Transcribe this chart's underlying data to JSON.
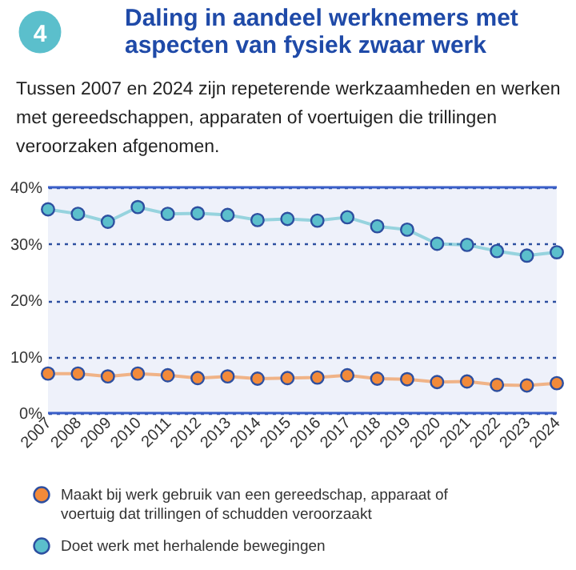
{
  "chart_data": {
    "type": "line",
    "title": "Daling in aandeel werknemers met aspecten van fysiek zwaar werk",
    "subtitle": "Tussen 2007 en 2024 zijn repeterende werkzaamheden en werken met gereedschappen, apparaten of voertuigen die trillingen veroorzaken afgenomen.",
    "annotations": [
      "4"
    ],
    "categories": [
      "2007",
      "2008",
      "2009",
      "2010",
      "2011",
      "2012",
      "2013",
      "2014",
      "2015",
      "2016",
      "2017",
      "2018",
      "2019",
      "2020",
      "2021",
      "2022",
      "2023",
      "2024"
    ],
    "series": [
      {
        "name": "Maakt bij werk gebruik van een gereedschap, apparaat of voertuig dat trillingen of schudden veroorzaakt",
        "color": "#f28a3a",
        "values": [
          7.0,
          7.0,
          6.5,
          7.0,
          6.7,
          6.2,
          6.5,
          6.1,
          6.2,
          6.3,
          6.7,
          6.1,
          6.0,
          5.5,
          5.6,
          5.0,
          4.9,
          5.3
        ]
      },
      {
        "name": "Doet werk met herhalende bewegingen",
        "color": "#5bbfcc",
        "values": [
          36.1,
          35.3,
          33.9,
          36.5,
          35.3,
          35.4,
          35.1,
          34.2,
          34.4,
          34.1,
          34.7,
          33.1,
          32.5,
          30.0,
          29.8,
          28.7,
          27.9,
          28.5
        ]
      }
    ],
    "ylim": [
      0,
      40
    ],
    "yticks": [
      {
        "value": 0,
        "label": "0%"
      },
      {
        "value": 10,
        "label": "10%"
      },
      {
        "value": 20,
        "label": "20%"
      },
      {
        "value": 30,
        "label": "30%"
      },
      {
        "value": 40,
        "label": "40%"
      }
    ],
    "grid": "y",
    "marker": "circle",
    "line_style": "solid",
    "legend": "bottom"
  }
}
